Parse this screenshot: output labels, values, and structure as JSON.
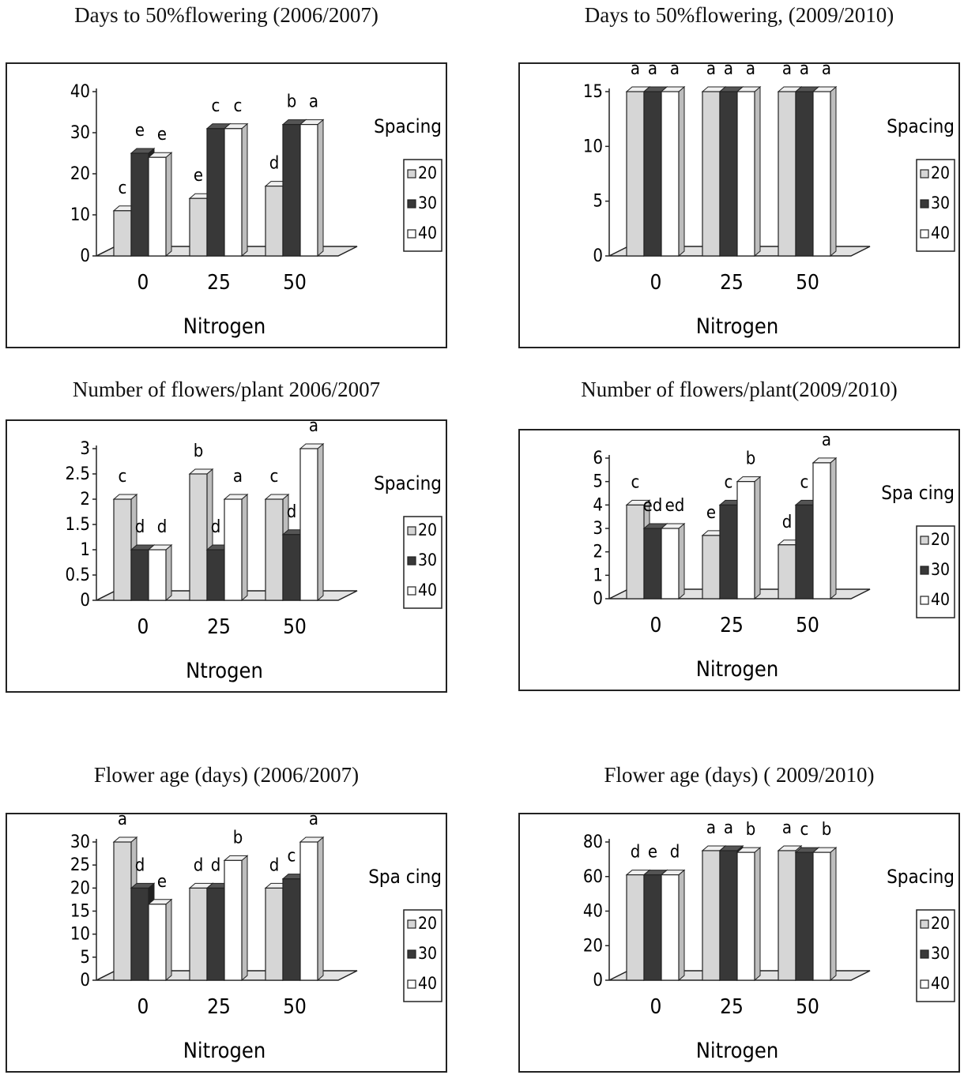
{
  "chart_data": [
    {
      "type": "bar",
      "title": "Days to 50%flowering (2006/2007)",
      "xlabel": "Nitrogen",
      "ylabel": "",
      "categories": [
        "0",
        "25",
        "50"
      ],
      "legend_title": "Spacing",
      "ylim": [
        0,
        40
      ],
      "yticks": [
        "0",
        "10",
        "20",
        "30",
        "40"
      ],
      "series": [
        {
          "name": "20",
          "values": [
            11,
            14,
            17
          ],
          "letters": [
            "c",
            "e",
            "d"
          ]
        },
        {
          "name": "30",
          "values": [
            25,
            31,
            32
          ],
          "letters": [
            "e",
            "c",
            "b"
          ]
        },
        {
          "name": "40",
          "values": [
            24,
            31,
            32
          ],
          "letters": [
            "e",
            "c",
            "a"
          ]
        }
      ],
      "grid": false,
      "legend_position": "right"
    },
    {
      "type": "bar",
      "title": "Days to 50%flowering, (2009/2010)",
      "xlabel": "Nitrogen",
      "ylabel": "",
      "categories": [
        "0",
        "25",
        "50"
      ],
      "legend_title": "Spacing",
      "ylim": [
        0,
        15
      ],
      "yticks": [
        "0",
        "5",
        "10",
        "15"
      ],
      "series": [
        {
          "name": "20",
          "values": [
            15,
            15,
            15
          ],
          "letters": [
            "a",
            "a",
            "a"
          ]
        },
        {
          "name": "30",
          "values": [
            15,
            15,
            15
          ],
          "letters": [
            "a",
            "a",
            "a"
          ]
        },
        {
          "name": "40",
          "values": [
            15,
            15,
            15
          ],
          "letters": [
            "a",
            "a",
            "a"
          ]
        }
      ],
      "grid": false,
      "legend_position": "right"
    },
    {
      "type": "bar",
      "title": "Number of flowers/plant 2006/2007",
      "xlabel": "Ntrogen",
      "ylabel": "",
      "categories": [
        "0",
        "25",
        "50"
      ],
      "legend_title": "Spacing",
      "ylim": [
        0,
        3
      ],
      "yticks": [
        "0",
        "0.5",
        "1",
        "1.5",
        "2",
        "2.5",
        "3"
      ],
      "series": [
        {
          "name": "20",
          "values": [
            2,
            2.5,
            2
          ],
          "letters": [
            "c",
            "b",
            "c"
          ]
        },
        {
          "name": "30",
          "values": [
            1,
            1,
            1.3
          ],
          "letters": [
            "d",
            "d",
            "d"
          ]
        },
        {
          "name": "40",
          "values": [
            1,
            2,
            3
          ],
          "letters": [
            "d",
            "a",
            "a"
          ]
        }
      ],
      "grid": false,
      "legend_position": "right"
    },
    {
      "type": "bar",
      "title": "Number of flowers/plant(2009/2010)",
      "xlabel": "Nitrogen",
      "ylabel": "",
      "categories": [
        "0",
        "25",
        "50"
      ],
      "legend_title": "Spa cing",
      "ylim": [
        0,
        6
      ],
      "yticks": [
        "0",
        "1",
        "2",
        "3",
        "4",
        "5",
        "6"
      ],
      "series": [
        {
          "name": "20",
          "values": [
            4,
            2.7,
            2.3
          ],
          "letters": [
            "c",
            "e",
            "d"
          ]
        },
        {
          "name": "30",
          "values": [
            3,
            4,
            4
          ],
          "letters": [
            "ed",
            "c",
            "c"
          ]
        },
        {
          "name": "40",
          "values": [
            3,
            5,
            5.8
          ],
          "letters": [
            "ed",
            "b",
            "a"
          ]
        }
      ],
      "grid": false,
      "legend_position": "right"
    },
    {
      "type": "bar",
      "title": "Flower age (days) (2006/2007)",
      "xlabel": "Nitrogen",
      "ylabel": "",
      "categories": [
        "0",
        "25",
        "50"
      ],
      "legend_title": "Spa cing",
      "ylim": [
        0,
        30
      ],
      "yticks": [
        "0",
        "5",
        "10",
        "15",
        "20",
        "25",
        "30"
      ],
      "series": [
        {
          "name": "20",
          "values": [
            30,
            20,
            20
          ],
          "letters": [
            "a",
            "d",
            "d"
          ]
        },
        {
          "name": "30",
          "values": [
            20,
            20,
            22
          ],
          "letters": [
            "d",
            "d",
            "c"
          ]
        },
        {
          "name": "40",
          "values": [
            16.5,
            26,
            30
          ],
          "letters": [
            "e",
            "b",
            "a"
          ]
        }
      ],
      "grid": false,
      "legend_position": "right"
    },
    {
      "type": "bar",
      "title": "Flower age (days) ( 2009/2010)",
      "xlabel": "Nitrogen",
      "ylabel": "",
      "categories": [
        "0",
        "25",
        "50"
      ],
      "legend_title": "Spacing",
      "ylim": [
        0,
        80
      ],
      "yticks": [
        "0",
        "20",
        "40",
        "60",
        "80"
      ],
      "series": [
        {
          "name": "20",
          "values": [
            61,
            75,
            75
          ],
          "letters": [
            "d",
            "a",
            "a"
          ]
        },
        {
          "name": "30",
          "values": [
            61,
            75,
            74
          ],
          "letters": [
            "e",
            "a",
            "c"
          ]
        },
        {
          "name": "40",
          "values": [
            61,
            74,
            74
          ],
          "letters": [
            "d",
            "b",
            "b"
          ]
        }
      ],
      "grid": false,
      "legend_position": "right"
    }
  ],
  "colors": {
    "s20": "#d6d6d6",
    "s30": "#383838",
    "s40": "#ffffff",
    "frame": "#222222",
    "floor": "#e2e2e2"
  }
}
